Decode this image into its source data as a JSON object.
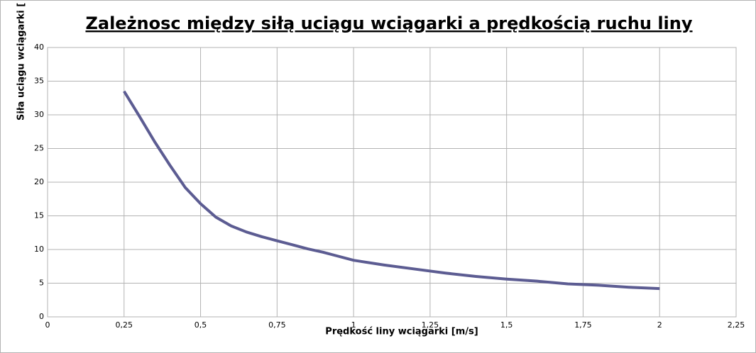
{
  "chart_data": {
    "type": "line",
    "title": "Zależnosc między siłą uciągu wciągarki a prędkością ruchu liny",
    "x_label": "Prędkość liny wciągarki [m/s]",
    "y_label": "Siła uciągu wciągarki [",
    "x": [
      0.25,
      0.3,
      0.35,
      0.4,
      0.45,
      0.5,
      0.55,
      0.6,
      0.65,
      0.7,
      0.75,
      0.8,
      0.85,
      0.9,
      0.95,
      1.0,
      1.1,
      1.2,
      1.3,
      1.4,
      1.5,
      1.6,
      1.7,
      1.8,
      1.9,
      2.0
    ],
    "series": [
      {
        "color": "#5c5c92",
        "values": [
          33.5,
          29.8,
          26,
          22.5,
          19.2,
          16.8,
          14.8,
          13.5,
          12.6,
          11.9,
          11.3,
          10.7,
          10.1,
          9.6,
          9.0,
          8.4,
          7.7,
          7.1,
          6.5,
          6.0,
          5.6,
          5.3,
          4.9,
          4.7,
          4.4,
          4.2
        ]
      }
    ],
    "xlim": [
      0,
      2.25
    ],
    "ylim": [
      0,
      40
    ],
    "xticks": [
      0,
      {
        "value": 0.25,
        "label": "0,25"
      },
      {
        "value": 0.5,
        "label": "0,5"
      },
      {
        "value": 0.75,
        "label": "0,75"
      },
      1,
      {
        "value": 1.25,
        "label": "1,25"
      },
      {
        "value": 1.5,
        "label": "1,5"
      },
      {
        "value": 1.75,
        "label": "1,75"
      },
      2,
      {
        "value": 2.25,
        "label": "2,25"
      }
    ],
    "yticks": [
      0,
      5,
      10,
      15,
      20,
      25,
      30,
      35,
      40
    ],
    "grid": true
  }
}
